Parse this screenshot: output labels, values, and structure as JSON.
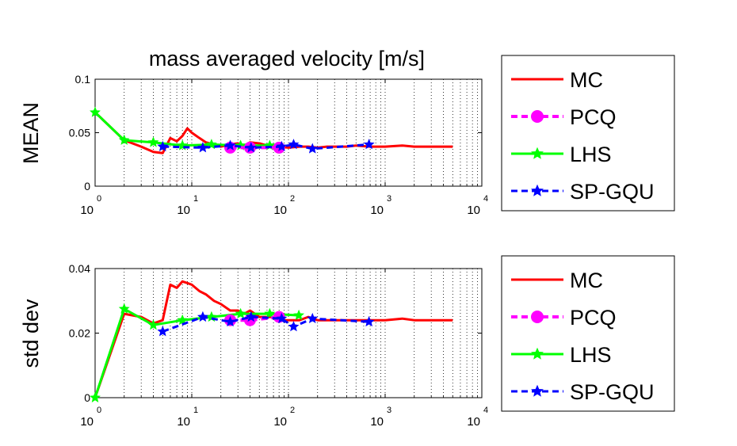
{
  "chart_data": [
    {
      "type": "line",
      "title": "mass averaged velocity [m/s]",
      "ylabel": "MEAN",
      "xlabel": "",
      "xscale": "log",
      "xlim": [
        1,
        10000
      ],
      "ylim": [
        0,
        0.1
      ],
      "x_ticks": [
        {
          "base": "10",
          "exp": "0"
        },
        {
          "base": "10",
          "exp": "1"
        },
        {
          "base": "10",
          "exp": "2"
        },
        {
          "base": "10",
          "exp": "3"
        },
        {
          "base": "10",
          "exp": "4"
        }
      ],
      "y_ticks": [
        "0",
        "0.05",
        "0.1"
      ],
      "y_tick_values": [
        0,
        0.05,
        0.1
      ],
      "grid": "vertical dotted (major and minor)",
      "legend": {
        "placement": "outside-right",
        "entries": [
          "MC",
          "PCQ",
          "LHS",
          "SP-GQU"
        ]
      },
      "series": [
        {
          "name": "MC",
          "color": "#ff0000",
          "style": "solid",
          "marker": "none",
          "x": [
            1,
            2,
            3,
            4,
            5,
            6,
            7,
            8,
            9,
            10,
            12,
            14,
            17,
            20,
            25,
            30,
            35,
            40,
            50,
            60,
            70,
            80,
            100,
            130,
            160,
            200,
            250,
            300,
            400,
            500,
            700,
            1000,
            1500,
            2000,
            3000,
            5000
          ],
          "y": [
            0.069,
            0.043,
            0.037,
            0.032,
            0.031,
            0.045,
            0.042,
            0.047,
            0.054,
            0.05,
            0.045,
            0.041,
            0.039,
            0.037,
            0.039,
            0.04,
            0.038,
            0.041,
            0.04,
            0.038,
            0.037,
            0.037,
            0.036,
            0.037,
            0.037,
            0.036,
            0.037,
            0.037,
            0.037,
            0.038,
            0.037,
            0.037,
            0.038,
            0.037,
            0.037,
            0.037
          ]
        },
        {
          "name": "PCQ",
          "color": "#ff00ff",
          "style": "dashed",
          "marker": "circle",
          "x": [
            25,
            40,
            80
          ],
          "y": [
            0.036,
            0.036,
            0.036
          ]
        },
        {
          "name": "LHS",
          "color": "#00ff00",
          "style": "solid",
          "marker": "star",
          "x": [
            1,
            2,
            4,
            8,
            16,
            32,
            64
          ],
          "y": [
            0.069,
            0.043,
            0.041,
            0.038,
            0.039,
            0.038,
            0.038
          ]
        },
        {
          "name": "SP-GQU",
          "color": "#0000ff",
          "style": "dashed",
          "marker": "star",
          "x": [
            5,
            13,
            25,
            41,
            85,
            113,
            177,
            681
          ],
          "y": [
            0.037,
            0.036,
            0.038,
            0.036,
            0.037,
            0.039,
            0.035,
            0.039
          ]
        }
      ]
    },
    {
      "type": "line",
      "title": "",
      "ylabel": "std dev",
      "xlabel": "",
      "xscale": "log",
      "xlim": [
        1,
        10000
      ],
      "ylim": [
        0,
        0.04
      ],
      "x_ticks": [
        {
          "base": "10",
          "exp": "0"
        },
        {
          "base": "10",
          "exp": "1"
        },
        {
          "base": "10",
          "exp": "2"
        },
        {
          "base": "10",
          "exp": "3"
        },
        {
          "base": "10",
          "exp": "4"
        }
      ],
      "y_ticks": [
        "0",
        "0.02",
        "0.04"
      ],
      "y_tick_values": [
        0,
        0.02,
        0.04
      ],
      "grid": "vertical dotted (major and minor)",
      "legend": {
        "placement": "outside-right",
        "entries": [
          "MC",
          "PCQ",
          "LHS",
          "SP-GQU"
        ]
      },
      "series": [
        {
          "name": "MC",
          "color": "#ff0000",
          "style": "solid",
          "marker": "none",
          "x": [
            1,
            2,
            3,
            4,
            5,
            6,
            7,
            8,
            9,
            10,
            12,
            14,
            17,
            20,
            25,
            30,
            35,
            40,
            50,
            60,
            70,
            80,
            100,
            130,
            160,
            200,
            250,
            300,
            400,
            500,
            700,
            1000,
            1500,
            2000,
            3000,
            5000
          ],
          "y": [
            0.0,
            0.026,
            0.025,
            0.023,
            0.024,
            0.035,
            0.034,
            0.036,
            0.0355,
            0.035,
            0.033,
            0.032,
            0.03,
            0.029,
            0.027,
            0.027,
            0.026,
            0.027,
            0.025,
            0.025,
            0.025,
            0.024,
            0.024,
            0.024,
            0.025,
            0.024,
            0.024,
            0.024,
            0.024,
            0.024,
            0.024,
            0.024,
            0.0245,
            0.024,
            0.024,
            0.024
          ]
        },
        {
          "name": "PCQ",
          "color": "#ff00ff",
          "style": "dashed",
          "marker": "circle",
          "x": [
            25,
            40,
            80
          ],
          "y": [
            0.024,
            0.024,
            0.025
          ]
        },
        {
          "name": "LHS",
          "color": "#00ff00",
          "style": "solid",
          "marker": "star",
          "x": [
            1,
            2,
            4,
            8,
            16,
            32,
            64,
            128
          ],
          "y": [
            0.0,
            0.0275,
            0.0225,
            0.024,
            0.025,
            0.026,
            0.026,
            0.0255
          ]
        },
        {
          "name": "SP-GQU",
          "color": "#0000ff",
          "style": "dashed",
          "marker": "star",
          "x": [
            5,
            13,
            25,
            41,
            85,
            113,
            177,
            681
          ],
          "y": [
            0.0205,
            0.025,
            0.0235,
            0.025,
            0.0245,
            0.022,
            0.0245,
            0.0235
          ]
        }
      ]
    }
  ]
}
